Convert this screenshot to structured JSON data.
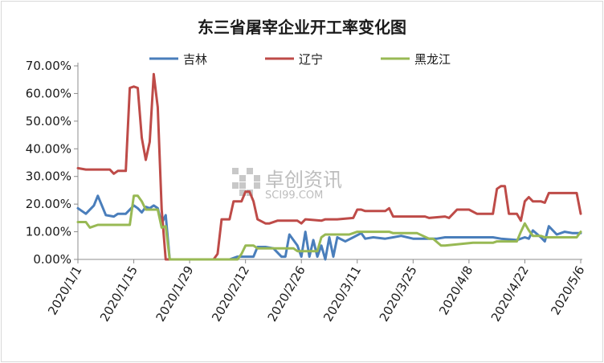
{
  "chart_data": {
    "type": "line",
    "title": "东三省屠宰企业开工率变化图",
    "xlabel": "",
    "ylabel": "",
    "ylim": [
      0,
      0.7
    ],
    "y_ticks": [
      "0.00%",
      "10.00%",
      "20.00%",
      "30.00%",
      "40.00%",
      "50.00%",
      "60.00%",
      "70.00%"
    ],
    "x_ticks": [
      "2020/1/1",
      "2020/1/15",
      "2020/1/29",
      "2020/2/12",
      "2020/2/26",
      "2020/3/11",
      "2020/3/25",
      "2020/4/8",
      "2020/4/22",
      "2020/5/6"
    ],
    "x_tick_days": [
      0,
      14,
      28,
      42,
      56,
      70,
      84,
      98,
      112,
      126
    ],
    "legend_position": "top",
    "grid": false,
    "watermark": {
      "cn": "卓创资讯",
      "en": "SCI99.COM"
    },
    "series": [
      {
        "name": "吉林",
        "color": "#4a7ebb",
        "x": [
          "2020/1/1",
          "2020/1/3",
          "2020/1/5",
          "2020/1/6",
          "2020/1/8",
          "2020/1/10",
          "2020/1/11",
          "2020/1/13",
          "2020/1/15",
          "2020/1/16",
          "2020/1/17",
          "2020/1/18",
          "2020/1/19",
          "2020/1/20",
          "2020/1/21",
          "2020/1/22",
          "2020/1/23",
          "2020/1/24",
          "2020/1/25",
          "2020/2/1",
          "2020/2/8",
          "2020/2/10",
          "2020/2/12",
          "2020/2/14",
          "2020/2/15",
          "2020/2/17",
          "2020/2/19",
          "2020/2/21",
          "2020/2/22",
          "2020/2/23",
          "2020/2/25",
          "2020/2/26",
          "2020/2/27",
          "2020/2/28",
          "2020/2/29",
          "2020/3/1",
          "2020/3/2",
          "2020/3/3",
          "2020/3/4",
          "2020/3/5",
          "2020/3/6",
          "2020/3/8",
          "2020/3/10",
          "2020/3/12",
          "2020/3/13",
          "2020/3/15",
          "2020/3/18",
          "2020/3/20",
          "2020/3/22",
          "2020/3/25",
          "2020/3/28",
          "2020/3/31",
          "2020/4/2",
          "2020/4/4",
          "2020/4/6",
          "2020/4/10",
          "2020/4/14",
          "2020/4/16",
          "2020/4/20",
          "2020/4/22",
          "2020/4/23",
          "2020/4/24",
          "2020/4/26",
          "2020/4/27",
          "2020/4/28",
          "2020/4/30",
          "2020/5/2",
          "2020/5/4",
          "2020/5/6"
        ],
        "values": [
          0.185,
          0.165,
          0.195,
          0.23,
          0.16,
          0.155,
          0.165,
          0.165,
          0.195,
          0.185,
          0.17,
          0.19,
          0.185,
          0.195,
          0.185,
          0.13,
          0.16,
          0.0,
          0.0,
          0.0,
          0.0,
          0.01,
          0.01,
          0.01,
          0.045,
          0.045,
          0.04,
          0.01,
          0.01,
          0.09,
          0.05,
          0.01,
          0.1,
          0.01,
          0.07,
          0.01,
          0.05,
          0.0,
          0.08,
          0.01,
          0.08,
          0.065,
          0.08,
          0.095,
          0.075,
          0.08,
          0.075,
          0.08,
          0.085,
          0.075,
          0.075,
          0.075,
          0.08,
          0.08,
          0.08,
          0.08,
          0.08,
          0.075,
          0.07,
          0.08,
          0.075,
          0.105,
          0.08,
          0.065,
          0.12,
          0.09,
          0.1,
          0.095,
          0.095
        ]
      },
      {
        "name": "辽宁",
        "color": "#be4b48",
        "x": [
          "2020/1/1",
          "2020/1/3",
          "2020/1/7",
          "2020/1/9",
          "2020/1/10",
          "2020/1/11",
          "2020/1/12",
          "2020/1/13",
          "2020/1/14",
          "2020/1/15",
          "2020/1/16",
          "2020/1/17",
          "2020/1/18",
          "2020/1/19",
          "2020/1/20",
          "2020/1/21",
          "2020/1/22",
          "2020/1/23",
          "2020/1/24",
          "2020/2/4",
          "2020/2/5",
          "2020/2/6",
          "2020/2/7",
          "2020/2/8",
          "2020/2/9",
          "2020/2/10",
          "2020/2/11",
          "2020/2/12",
          "2020/2/13",
          "2020/2/14",
          "2020/2/15",
          "2020/2/17",
          "2020/2/18",
          "2020/2/20",
          "2020/2/25",
          "2020/2/26",
          "2020/2/27",
          "2020/3/2",
          "2020/3/3",
          "2020/3/6",
          "2020/3/10",
          "2020/3/11",
          "2020/3/12",
          "2020/3/13",
          "2020/3/18",
          "2020/3/19",
          "2020/3/20",
          "2020/3/28",
          "2020/3/29",
          "2020/4/2",
          "2020/4/3",
          "2020/4/5",
          "2020/4/8",
          "2020/4/10",
          "2020/4/11",
          "2020/4/14",
          "2020/4/15",
          "2020/4/16",
          "2020/4/17",
          "2020/4/18",
          "2020/4/19",
          "2020/4/20",
          "2020/4/21",
          "2020/4/22",
          "2020/4/23",
          "2020/4/24",
          "2020/4/25",
          "2020/4/26",
          "2020/4/27",
          "2020/4/28",
          "2020/5/5",
          "2020/5/6"
        ],
        "values": [
          0.33,
          0.325,
          0.325,
          0.325,
          0.31,
          0.32,
          0.32,
          0.32,
          0.62,
          0.625,
          0.62,
          0.44,
          0.36,
          0.425,
          0.67,
          0.55,
          0.18,
          0.0,
          0.0,
          0.0,
          0.02,
          0.145,
          0.145,
          0.145,
          0.21,
          0.21,
          0.21,
          0.245,
          0.245,
          0.21,
          0.145,
          0.13,
          0.13,
          0.14,
          0.14,
          0.13,
          0.145,
          0.14,
          0.145,
          0.145,
          0.15,
          0.18,
          0.18,
          0.175,
          0.175,
          0.185,
          0.155,
          0.155,
          0.15,
          0.155,
          0.15,
          0.18,
          0.18,
          0.165,
          0.165,
          0.165,
          0.255,
          0.265,
          0.265,
          0.165,
          0.165,
          0.165,
          0.14,
          0.21,
          0.225,
          0.21,
          0.21,
          0.21,
          0.205,
          0.24,
          0.24,
          0.165
        ]
      },
      {
        "name": "黑龙江",
        "color": "#98b954",
        "x": [
          "2020/1/1",
          "2020/1/3",
          "2020/1/4",
          "2020/1/5",
          "2020/1/6",
          "2020/1/7",
          "2020/1/14",
          "2020/1/15",
          "2020/1/16",
          "2020/1/17",
          "2020/1/18",
          "2020/1/19",
          "2020/1/20",
          "2020/1/21",
          "2020/1/22",
          "2020/1/23",
          "2020/1/24",
          "2020/2/10",
          "2020/2/11",
          "2020/2/12",
          "2020/2/13",
          "2020/2/14",
          "2020/2/15",
          "2020/2/17",
          "2020/2/18",
          "2020/2/20",
          "2020/2/24",
          "2020/2/25",
          "2020/2/27",
          "2020/2/28",
          "2020/3/1",
          "2020/3/2",
          "2020/3/3",
          "2020/3/9",
          "2020/3/10",
          "2020/3/11",
          "2020/3/12",
          "2020/3/18",
          "2020/3/19",
          "2020/3/20",
          "2020/3/22",
          "2020/3/26",
          "2020/3/29",
          "2020/3/30",
          "2020/4/1",
          "2020/4/2",
          "2020/4/9",
          "2020/4/14",
          "2020/4/15",
          "2020/4/20",
          "2020/4/21",
          "2020/4/22",
          "2020/4/23",
          "2020/4/24",
          "2020/4/25",
          "2020/4/26",
          "2020/4/27",
          "2020/4/28",
          "2020/5/5",
          "2020/5/6"
        ],
        "values": [
          0.135,
          0.135,
          0.115,
          0.12,
          0.125,
          0.125,
          0.125,
          0.23,
          0.23,
          0.21,
          0.18,
          0.18,
          0.18,
          0.18,
          0.115,
          0.12,
          0.0,
          0.0,
          0.02,
          0.05,
          0.05,
          0.05,
          0.04,
          0.04,
          0.04,
          0.04,
          0.04,
          0.03,
          0.03,
          0.03,
          0.03,
          0.08,
          0.09,
          0.09,
          0.095,
          0.1,
          0.1,
          0.1,
          0.1,
          0.095,
          0.095,
          0.095,
          0.075,
          0.075,
          0.05,
          0.05,
          0.06,
          0.06,
          0.065,
          0.065,
          0.1,
          0.13,
          0.105,
          0.085,
          0.085,
          0.085,
          0.08,
          0.08,
          0.08,
          0.1
        ]
      }
    ]
  }
}
